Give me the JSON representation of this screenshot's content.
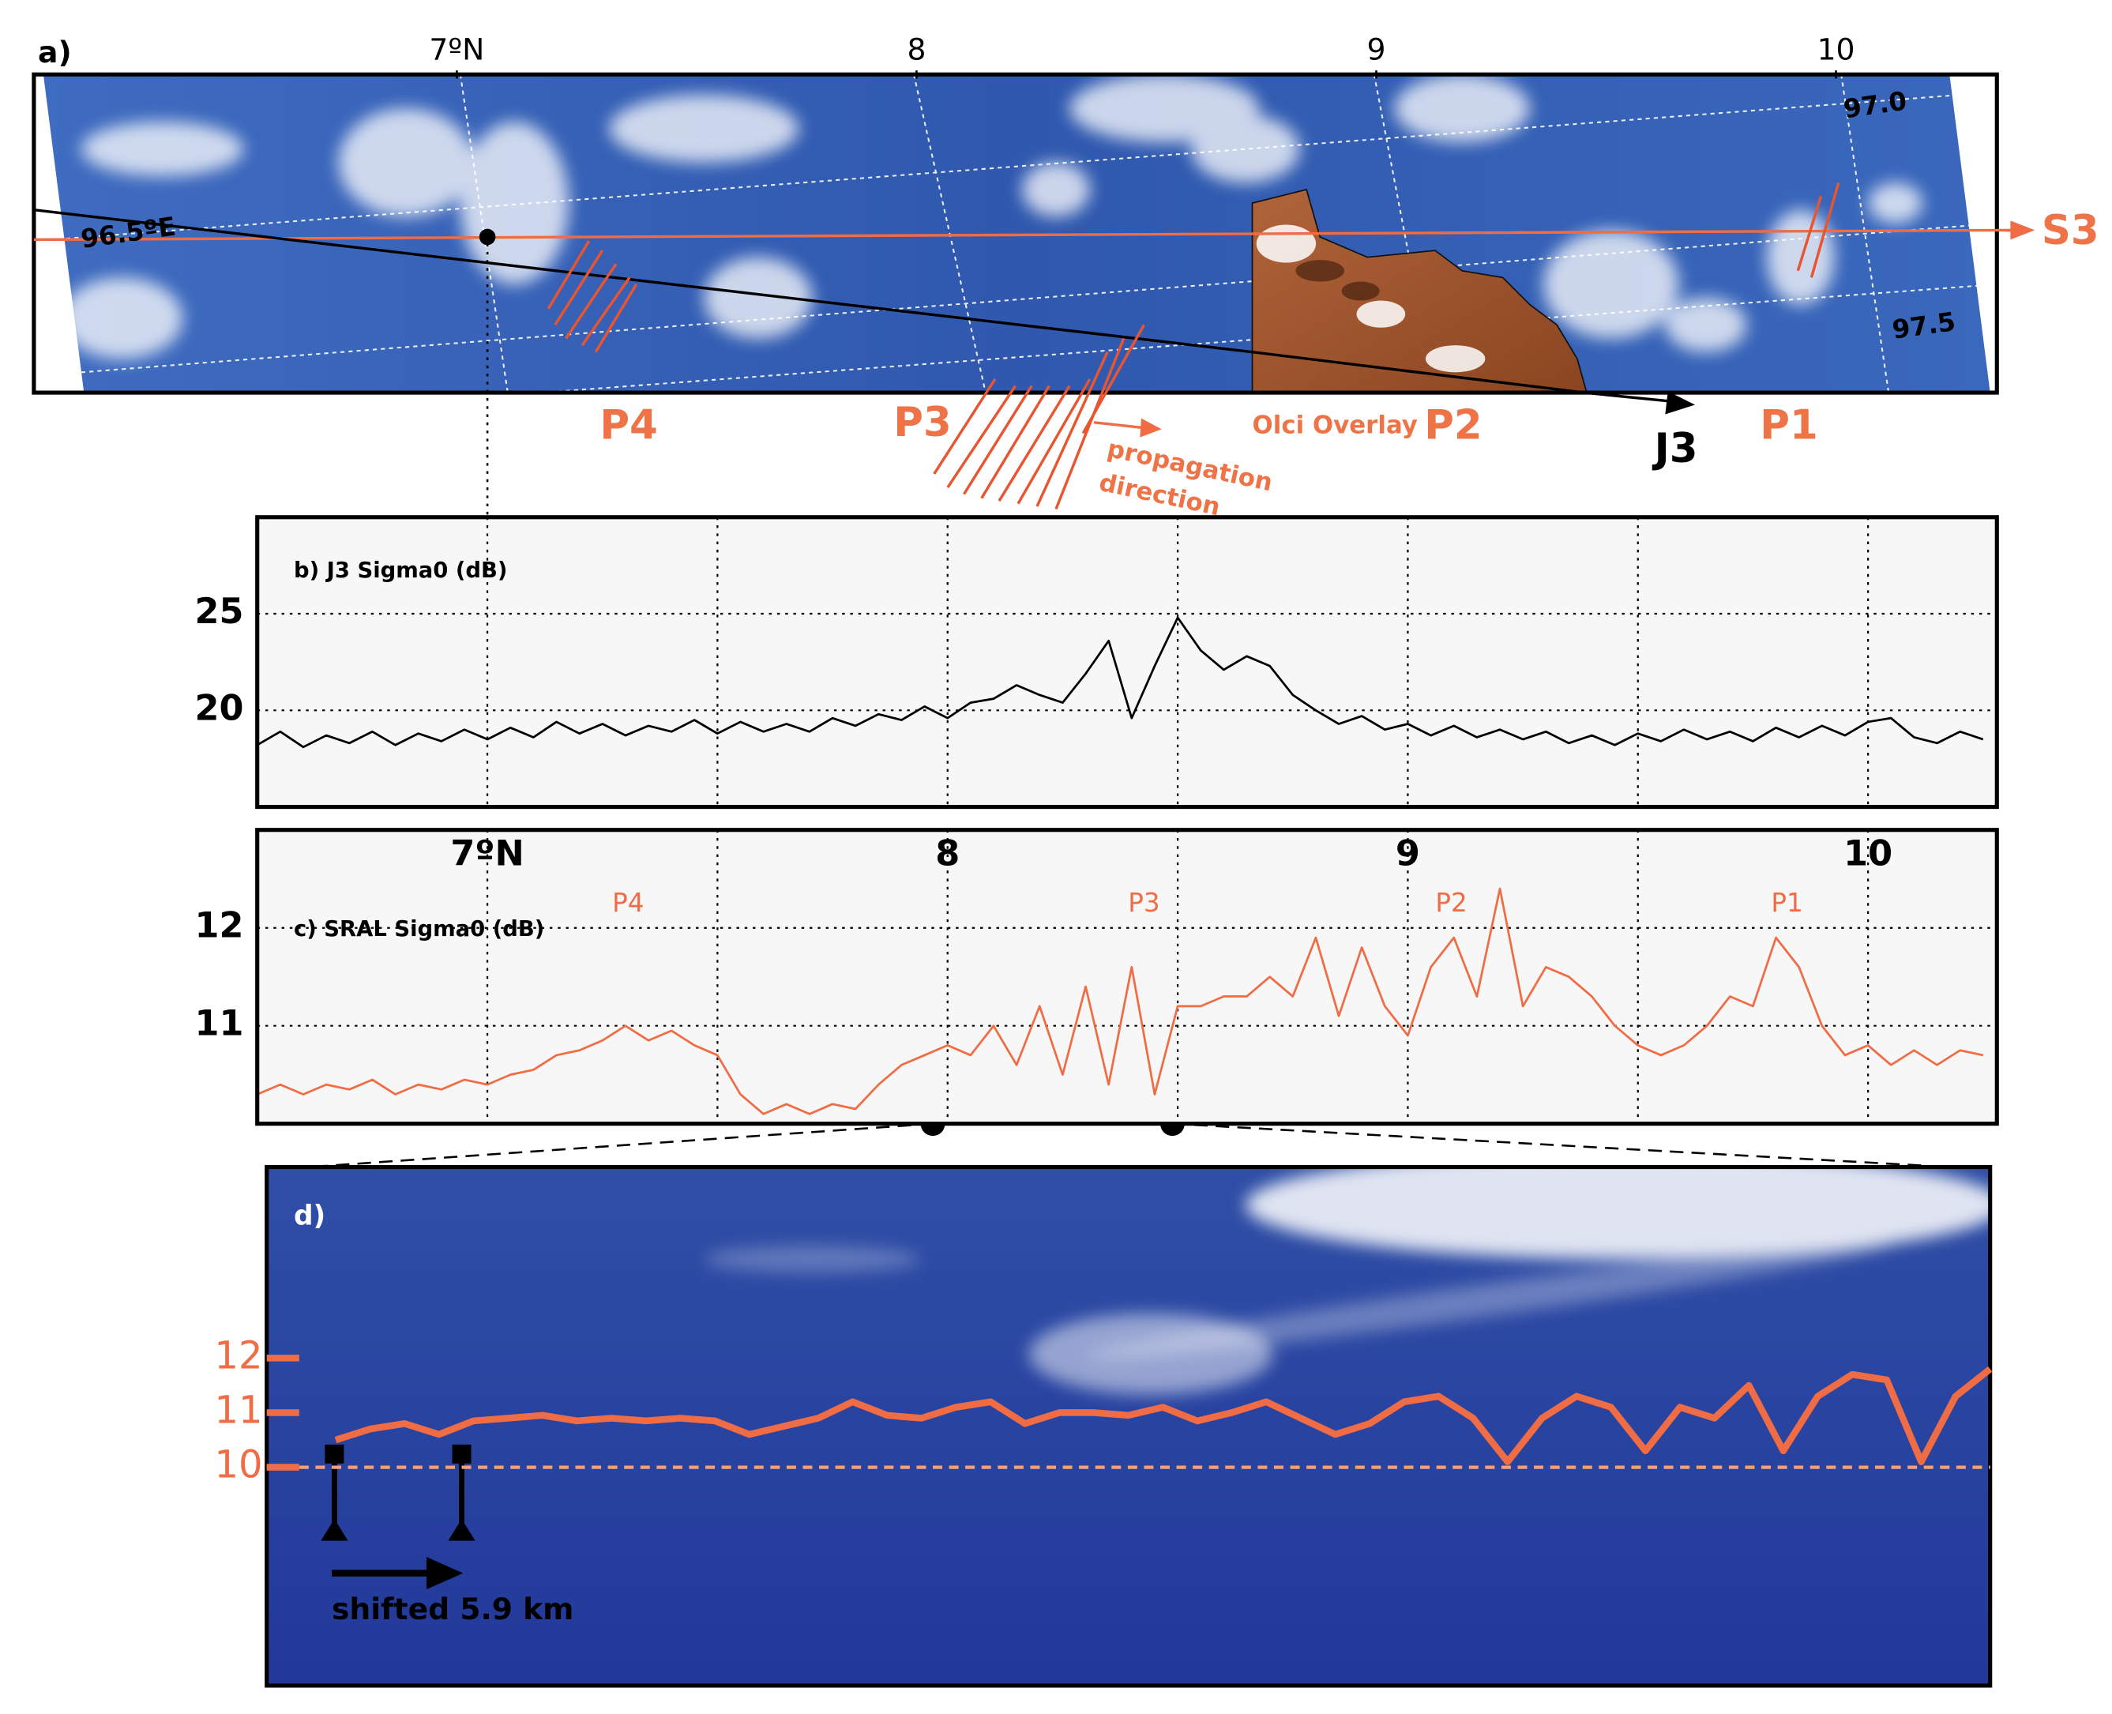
{
  "chart_data": [
    {
      "type": "image_panel",
      "panel_label": "a)",
      "xlim": [
        6.08,
        10.35
      ],
      "xticks": [
        {
          "value": 7,
          "label": "7ºN"
        },
        8,
        9,
        10
      ],
      "labels": {
        "lon_965": "96.5ºE",
        "lon_970": "97.0",
        "lon_975": "97.5",
        "s3": "S3",
        "j3": "J3",
        "p4": "P4",
        "p3": "P3",
        "p2": "P2",
        "p1": "P1",
        "olci": "Olci Overlay",
        "propagation_direction": [
          "propagation",
          "direction"
        ]
      }
    },
    {
      "type": "line",
      "title": "b) J3 Sigma0 (dB)",
      "color": "#000000",
      "xlim": [
        6.5,
        10.28
      ],
      "ylim": [
        15,
        30
      ],
      "yticks": [
        20,
        25
      ],
      "xgrid": [
        7,
        7.5,
        8,
        8.5,
        9,
        9.5,
        10
      ],
      "grid": true,
      "x": [
        6.5,
        6.55,
        6.6,
        6.65,
        6.7,
        6.75,
        6.8,
        6.85,
        6.9,
        6.95,
        7,
        7.05,
        7.1,
        7.15,
        7.2,
        7.25,
        7.3,
        7.35,
        7.4,
        7.45,
        7.5,
        7.55,
        7.6,
        7.65,
        7.7,
        7.75,
        7.8,
        7.85,
        7.9,
        7.95,
        8,
        8.05,
        8.1,
        8.15,
        8.2,
        8.25,
        8.3,
        8.35,
        8.4,
        8.45,
        8.5,
        8.55,
        8.6,
        8.65,
        8.7,
        8.75,
        8.8,
        8.85,
        8.9,
        8.95,
        9,
        9.05,
        9.1,
        9.15,
        9.2,
        9.25,
        9.3,
        9.35,
        9.4,
        9.45,
        9.5,
        9.55,
        9.6,
        9.65,
        9.7,
        9.75,
        9.8,
        9.85,
        9.9,
        9.95,
        10,
        10.05,
        10.1,
        10.15,
        10.2,
        10.25
      ],
      "values": [
        18.2,
        18.9,
        18.1,
        18.7,
        18.3,
        18.9,
        18.2,
        18.8,
        18.4,
        19.0,
        18.5,
        19.1,
        18.6,
        19.4,
        18.8,
        19.3,
        18.7,
        19.2,
        18.9,
        19.5,
        18.8,
        19.4,
        18.9,
        19.3,
        18.9,
        19.6,
        19.2,
        19.8,
        19.5,
        20.2,
        19.6,
        20.4,
        20.6,
        21.3,
        20.8,
        20.4,
        21.9,
        23.6,
        19.6,
        22.3,
        24.8,
        23.1,
        22.1,
        22.8,
        22.3,
        20.8,
        20.0,
        19.3,
        19.7,
        19.0,
        19.3,
        18.7,
        19.2,
        18.6,
        19.0,
        18.5,
        18.9,
        18.3,
        18.7,
        18.2,
        18.8,
        18.4,
        19.0,
        18.5,
        18.9,
        18.4,
        19.1,
        18.6,
        19.2,
        18.7,
        19.4,
        19.6,
        18.6,
        18.3,
        18.9,
        18.5
      ]
    },
    {
      "type": "line",
      "title": "c) SRAL Sigma0 (dB)",
      "color": "#ef6c45",
      "xlim": [
        6.5,
        10.28
      ],
      "ylim": [
        10,
        13
      ],
      "yticks": [
        11,
        12
      ],
      "xticks": [
        {
          "value": 7,
          "label": "7ºN"
        },
        8,
        9,
        10
      ],
      "xgrid_minor": [
        7.5,
        8.5,
        9.5
      ],
      "grid": true,
      "annotations": [
        "P4",
        "P3",
        "P2",
        "P1"
      ],
      "x": [
        6.5,
        6.55,
        6.6,
        6.65,
        6.7,
        6.75,
        6.8,
        6.85,
        6.9,
        6.95,
        7,
        7.05,
        7.1,
        7.15,
        7.2,
        7.25,
        7.3,
        7.35,
        7.4,
        7.45,
        7.5,
        7.55,
        7.6,
        7.65,
        7.7,
        7.75,
        7.8,
        7.85,
        7.9,
        7.95,
        8,
        8.05,
        8.1,
        8.15,
        8.2,
        8.25,
        8.3,
        8.35,
        8.4,
        8.45,
        8.5,
        8.55,
        8.6,
        8.65,
        8.7,
        8.75,
        8.8,
        8.85,
        8.9,
        8.95,
        9,
        9.05,
        9.1,
        9.15,
        9.2,
        9.25,
        9.3,
        9.35,
        9.4,
        9.45,
        9.5,
        9.55,
        9.6,
        9.65,
        9.7,
        9.75,
        9.8,
        9.85,
        9.9,
        9.95,
        10,
        10.05,
        10.1,
        10.15,
        10.2,
        10.25
      ],
      "values": [
        10.3,
        10.4,
        10.3,
        10.4,
        10.35,
        10.45,
        10.3,
        10.4,
        10.35,
        10.45,
        10.4,
        10.5,
        10.55,
        10.7,
        10.75,
        10.85,
        11.0,
        10.85,
        10.95,
        10.8,
        10.7,
        10.3,
        10.1,
        10.2,
        10.1,
        10.2,
        10.15,
        10.4,
        10.6,
        10.7,
        10.8,
        10.7,
        11.0,
        10.6,
        11.2,
        10.5,
        11.4,
        10.4,
        11.6,
        10.3,
        11.2,
        11.2,
        11.3,
        11.3,
        11.5,
        11.3,
        11.9,
        11.1,
        11.8,
        11.2,
        10.9,
        11.6,
        11.9,
        11.3,
        12.4,
        11.2,
        11.6,
        11.5,
        11.3,
        11.0,
        10.8,
        10.7,
        10.8,
        11.0,
        11.3,
        11.2,
        11.9,
        11.6,
        11.0,
        10.7,
        10.8,
        10.6,
        10.75,
        10.6,
        10.75,
        10.7
      ]
    },
    {
      "type": "overlay_line",
      "panel_label": "d)",
      "note": "shifted 5.9 km",
      "color": "#ef6c45",
      "xlim": [
        8.0,
        8.5
      ],
      "ylim": [
        6,
        15.5
      ],
      "yticks": [
        10,
        11,
        12
      ],
      "reference_line": 10,
      "x": [
        8.02,
        8.03,
        8.04,
        8.05,
        8.06,
        8.07,
        8.08,
        8.09,
        8.1,
        8.11,
        8.12,
        8.13,
        8.14,
        8.15,
        8.16,
        8.17,
        8.18,
        8.19,
        8.2,
        8.21,
        8.22,
        8.23,
        8.24,
        8.25,
        8.26,
        8.27,
        8.28,
        8.29,
        8.3,
        8.31,
        8.32,
        8.33,
        8.34,
        8.35,
        8.36,
        8.37,
        8.38,
        8.39,
        8.4,
        8.41,
        8.42,
        8.43,
        8.44,
        8.45,
        8.46,
        8.47,
        8.48,
        8.49,
        8.5
      ],
      "values": [
        10.5,
        10.7,
        10.8,
        10.6,
        10.85,
        10.9,
        10.95,
        10.85,
        10.9,
        10.85,
        10.9,
        10.85,
        10.6,
        10.75,
        10.9,
        11.2,
        10.95,
        10.9,
        11.1,
        11.2,
        10.8,
        11.0,
        11.0,
        10.95,
        11.1,
        10.85,
        11.0,
        11.2,
        10.9,
        10.6,
        10.8,
        11.2,
        11.3,
        10.9,
        10.1,
        10.9,
        11.3,
        11.1,
        10.3,
        11.1,
        10.9,
        11.5,
        10.3,
        11.3,
        11.7,
        11.6,
        10.1,
        11.3,
        11.8
      ]
    }
  ]
}
